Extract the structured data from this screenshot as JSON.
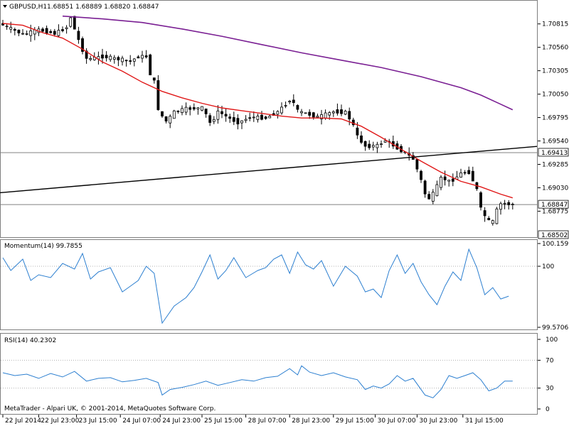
{
  "chart_data": {
    "type": "candlestick",
    "platform": "MetaTrader - Alpari UK, © 2001-2014, MetaQuotes Software Corp.",
    "header": {
      "symbol": "GBPUSD,H1",
      "ohlc": "1.68851 1.68889 1.68820 1.68847"
    },
    "price_axis": {
      "ylim": [
        1.685,
        1.7106
      ],
      "ticks": [
        "1.70815",
        "1.70560",
        "1.70305",
        "1.70050",
        "1.69795",
        "1.69540",
        "1.69285",
        "1.69030",
        "1.68775"
      ],
      "highlight_labels": [
        {
          "value": 1.69413,
          "text": "1.69413"
        },
        {
          "value": 1.68847,
          "text": "1.68847"
        },
        {
          "value": 1.685,
          "text": "1.68502"
        }
      ]
    },
    "horizontal_lines": [
      1.69413,
      1.68847
    ],
    "trendline": {
      "x": [
        0,
        128
      ],
      "y": [
        1.6898,
        1.6946
      ]
    },
    "ma_fast": {
      "x": [
        0,
        5,
        10,
        15,
        20,
        25,
        30,
        35,
        40,
        45,
        50,
        55,
        60,
        65,
        70,
        75,
        80,
        85,
        90,
        95,
        100,
        105,
        110,
        115,
        120,
        125,
        128
      ],
      "y": [
        1.7082,
        1.708,
        1.7072,
        1.7066,
        1.7054,
        1.704,
        1.703,
        1.7018,
        1.7008,
        1.7001,
        1.6995,
        1.699,
        1.6987,
        1.6984,
        1.6981,
        1.6979,
        1.6979,
        1.6978,
        1.697,
        1.6958,
        1.6945,
        1.6932,
        1.692,
        1.691,
        1.6904,
        1.6896,
        1.6892
      ]
    },
    "ma_slow": {
      "x": [
        15,
        25,
        35,
        45,
        55,
        65,
        75,
        85,
        95,
        105,
        115,
        120,
        125,
        128
      ],
      "y": [
        1.709,
        1.7087,
        1.7083,
        1.7076,
        1.7068,
        1.7059,
        1.705,
        1.7042,
        1.7034,
        1.7024,
        1.7012,
        1.7004,
        1.6994,
        1.6988
      ]
    },
    "price_curve": {
      "x": [
        0,
        3,
        6,
        10,
        14,
        17,
        18,
        19,
        21,
        22,
        26,
        30,
        33,
        35,
        37,
        38,
        39,
        40,
        42,
        44,
        47,
        51,
        52,
        53,
        55,
        58,
        60,
        63,
        67,
        70,
        73,
        74,
        75,
        77,
        80,
        84,
        87,
        88,
        89,
        90,
        92,
        95,
        97,
        98,
        100,
        102,
        104,
        106,
        107,
        108,
        109,
        111,
        113,
        114,
        116,
        118,
        119,
        120,
        121,
        122,
        123,
        124,
        125,
        126,
        127,
        128
      ],
      "y": [
        1.7082,
        1.7076,
        1.707,
        1.7075,
        1.7071,
        1.7078,
        1.709,
        1.7074,
        1.7052,
        1.7043,
        1.7046,
        1.7043,
        1.7041,
        1.7046,
        1.7046,
        1.7025,
        1.7018,
        1.6986,
        1.6975,
        1.6986,
        1.6989,
        1.699,
        1.6982,
        1.6973,
        1.6986,
        1.6978,
        1.6974,
        1.698,
        1.6979,
        1.6986,
        1.6999,
        1.6995,
        1.6986,
        1.6984,
        1.698,
        1.6986,
        1.6985,
        1.6978,
        1.697,
        1.6958,
        1.6948,
        1.6949,
        1.6955,
        1.6952,
        1.6946,
        1.6941,
        1.6934,
        1.691,
        1.6895,
        1.6891,
        1.6897,
        1.6914,
        1.691,
        1.6912,
        1.6919,
        1.692,
        1.691,
        1.69,
        1.6878,
        1.6872,
        1.6866,
        1.6866,
        1.688,
        1.6886,
        1.6886,
        1.6885
      ]
    },
    "candle_width_bars": 0.6,
    "momentum": {
      "label": "Momentum(14) 99.7855",
      "ylim": [
        99.5706,
        100.1599
      ],
      "ticks": [
        "100.1599",
        "100",
        "99.5706"
      ],
      "level": 100,
      "x": [
        0,
        2,
        5,
        7,
        9,
        12,
        15,
        18,
        20,
        22,
        24,
        27,
        30,
        32,
        34,
        36,
        38,
        40,
        43,
        46,
        48,
        50,
        52,
        54,
        56,
        58,
        61,
        64,
        66,
        68,
        70,
        72,
        74,
        76,
        78,
        80,
        83,
        86,
        89,
        91,
        93,
        95,
        97,
        99,
        101,
        103,
        105,
        107,
        109,
        111,
        113,
        115,
        117,
        119,
        121,
        123,
        125,
        127
      ],
      "y": [
        100.06,
        99.97,
        100.05,
        99.9,
        99.94,
        99.92,
        100.02,
        99.98,
        100.09,
        99.91,
        99.96,
        99.99,
        99.82,
        99.86,
        99.9,
        100.0,
        99.95,
        99.6,
        99.72,
        99.78,
        99.85,
        99.96,
        100.08,
        99.91,
        99.97,
        100.06,
        99.92,
        99.97,
        99.99,
        100.05,
        100.08,
        99.95,
        100.1,
        100.01,
        99.98,
        100.04,
        99.86,
        100.0,
        99.93,
        99.82,
        99.84,
        99.78,
        99.97,
        100.08,
        99.95,
        100.02,
        99.89,
        99.8,
        99.73,
        99.86,
        99.96,
        99.9,
        100.12,
        99.99,
        99.8,
        99.85,
        99.77,
        99.79
      ]
    },
    "rsi": {
      "label": "RSI(14) 40.2302",
      "ylim": [
        0,
        100
      ],
      "ticks": [
        "100",
        "70",
        "30",
        "0"
      ],
      "levels": [
        70,
        30
      ],
      "x": [
        0,
        3,
        6,
        9,
        12,
        15,
        18,
        21,
        24,
        27,
        30,
        33,
        36,
        39,
        40,
        42,
        45,
        48,
        51,
        54,
        57,
        60,
        63,
        66,
        69,
        72,
        74,
        75,
        77,
        80,
        83,
        86,
        89,
        91,
        93,
        95,
        97,
        99,
        101,
        103,
        106,
        108,
        110,
        112,
        114,
        116,
        118,
        120,
        122,
        124,
        126,
        128
      ],
      "y": [
        52,
        48,
        50,
        44,
        51,
        46,
        54,
        40,
        44,
        45,
        39,
        41,
        44,
        38,
        20,
        28,
        31,
        35,
        40,
        34,
        38,
        42,
        40,
        45,
        47,
        58,
        49,
        62,
        53,
        48,
        52,
        46,
        42,
        28,
        33,
        30,
        36,
        48,
        40,
        44,
        20,
        16,
        28,
        48,
        44,
        48,
        52,
        42,
        26,
        30,
        40,
        40
      ]
    },
    "x_axis": {
      "n_bars": 131,
      "ticks": [
        {
          "i": 0,
          "label": "22 Jul 2014"
        },
        {
          "i": 9,
          "label": "22 Jul 23:00"
        },
        {
          "i": 18.5,
          "label": "23 Jul 15:00"
        },
        {
          "i": 29.5,
          "label": "24 Jul 07:00"
        },
        {
          "i": 39.5,
          "label": "24 Jul 23:00"
        },
        {
          "i": 50,
          "label": "25 Jul 15:00"
        },
        {
          "i": 61,
          "label": "28 Jul 07:00"
        },
        {
          "i": 72,
          "label": "28 Jul 23:00"
        },
        {
          "i": 83,
          "label": "29 Jul 15:00"
        },
        {
          "i": 93.5,
          "label": "30 Jul 07:00"
        },
        {
          "i": 104,
          "label": "30 Jul 23:00"
        },
        {
          "i": 115.5,
          "label": "31 Jul 15:00"
        }
      ]
    },
    "colors": {
      "candle": "#000000",
      "ma_fast": "#e01818",
      "ma_slow": "#7a1f93",
      "trendline": "#000000",
      "hline": "#808080",
      "momentum": "#2c7fd0",
      "rsi": "#2c7fd0",
      "level": "#b0b0b0",
      "border": "#7f7f7f"
    }
  }
}
